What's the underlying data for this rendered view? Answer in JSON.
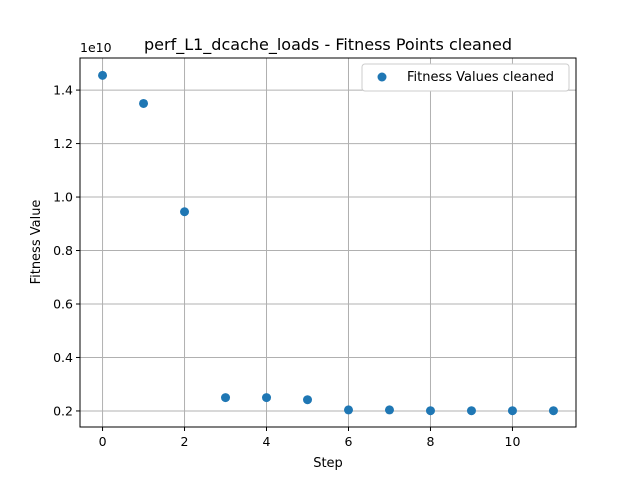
{
  "chart_data": {
    "type": "scatter",
    "title": "perf_L1_dcache_loads - Fitness Points cleaned",
    "xlabel": "Step",
    "ylabel": "Fitness Value",
    "offset_text": "1e10",
    "xlim": [
      -0.55,
      11.55
    ],
    "ylim": [
      1400000000.0,
      15200000000.0
    ],
    "xticks": [
      0,
      2,
      4,
      6,
      8,
      10
    ],
    "xtick_labels": [
      "0",
      "2",
      "4",
      "6",
      "8",
      "10"
    ],
    "yticks": [
      2000000000.0,
      4000000000.0,
      6000000000.0,
      8000000000.0,
      10000000000.0,
      12000000000.0,
      14000000000.0
    ],
    "ytick_labels": [
      "0.2",
      "0.4",
      "0.6",
      "0.8",
      "1.0",
      "1.2",
      "1.4"
    ],
    "grid": true,
    "legend_position": "top-right",
    "marker_color": "#1f77b4",
    "series": [
      {
        "name": "Fitness Values cleaned",
        "x": [
          0,
          1,
          2,
          3,
          4,
          5,
          6,
          7,
          8,
          9,
          10,
          11
        ],
        "y": [
          14550000000.0,
          13500000000.0,
          9450000000.0,
          2500000000.0,
          2500000000.0,
          2420000000.0,
          2040000000.0,
          2040000000.0,
          2010000000.0,
          2010000000.0,
          2010000000.0,
          2010000000.0
        ]
      }
    ]
  }
}
